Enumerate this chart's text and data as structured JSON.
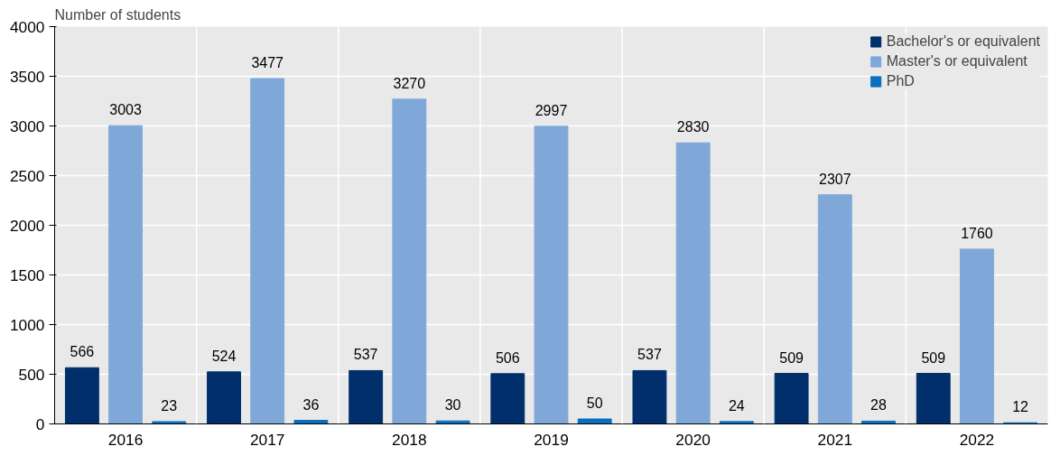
{
  "chart_data": {
    "type": "bar",
    "ylabel": "Number of students",
    "categories": [
      "2016",
      "2017",
      "2018",
      "2019",
      "2020",
      "2021",
      "2022"
    ],
    "series": [
      {
        "name": "Bachelor's or equivalent",
        "color": "#002f6c",
        "values": [
          566,
          524,
          537,
          506,
          537,
          509,
          509
        ]
      },
      {
        "name": "Master's or equivalent",
        "color": "#7fa8d9",
        "values": [
          3003,
          3477,
          3270,
          2997,
          2830,
          2307,
          1760
        ]
      },
      {
        "name": "PhD",
        "color": "#0b6fbf",
        "values": [
          23,
          36,
          30,
          50,
          24,
          28,
          12
        ]
      }
    ],
    "ylim": [
      0,
      4000
    ],
    "yticks": [
      0,
      500,
      1000,
      1500,
      2000,
      2500,
      3000,
      3500,
      4000
    ],
    "grid": true,
    "legend": "top right",
    "data_labels": true
  }
}
